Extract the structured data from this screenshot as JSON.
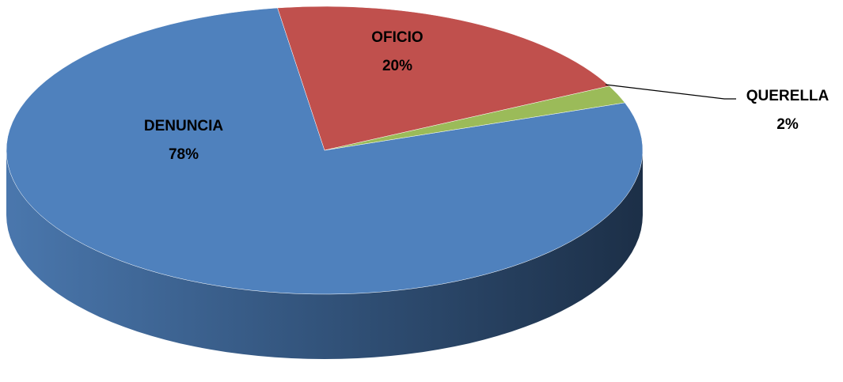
{
  "chart_data": {
    "type": "pie3d",
    "categories": [
      "DENUNCIA",
      "OFICIO",
      "QUERELLA"
    ],
    "values": [
      78,
      20,
      2
    ],
    "value_labels": [
      "78%",
      "20%",
      "2%"
    ],
    "colors": [
      "#4f81bd",
      "#c0504d",
      "#9bbb59"
    ]
  }
}
